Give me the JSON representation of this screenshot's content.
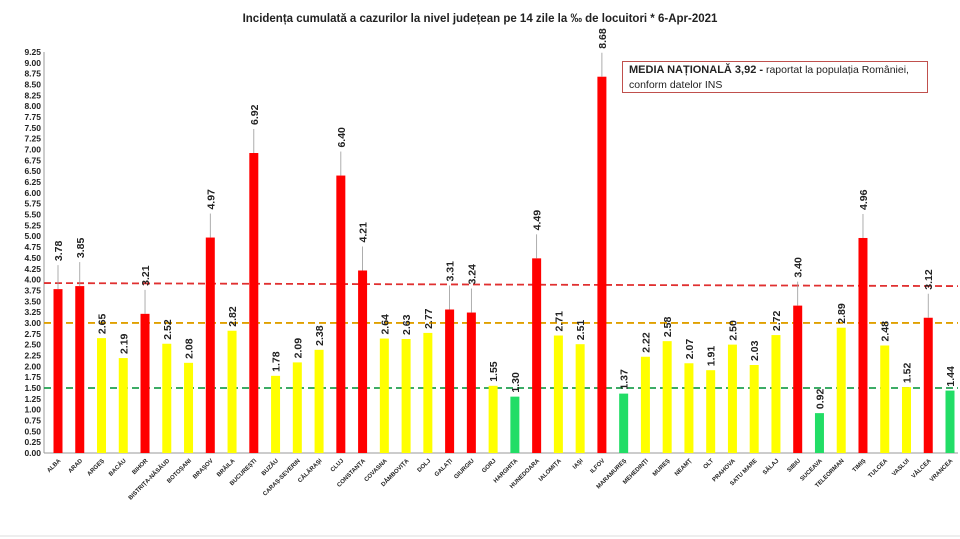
{
  "chart_data": {
    "type": "bar",
    "title": "Incidența cumulată a cazurilor la nivel județean pe 14 zile la ‰ de locuitori *   6-Apr-2021",
    "xlabel": "",
    "ylabel": "",
    "ylim": [
      0,
      9.25
    ],
    "ytick_step": 0.25,
    "grid": false,
    "categories": [
      "ALBA",
      "ARAD",
      "ARGEȘ",
      "BACĂU",
      "BIHOR",
      "BISTRIȚA-NĂSĂUD",
      "BOTOȘANI",
      "BRAȘOV",
      "BRĂILA",
      "BUCUREȘTI",
      "BUZĂU",
      "CARAȘ-SEVERIN",
      "CĂLĂRAȘI",
      "CLUJ",
      "CONSTANȚA",
      "COVASNA",
      "DÂMBOVIȚA",
      "DOLJ",
      "GALAȚI",
      "GIURGIU",
      "GORJ",
      "HARGHITA",
      "HUNEDOARA",
      "IALOMIȚA",
      "IAȘI",
      "ILFOV",
      "MARAMUREȘ",
      "MEHEDINȚI",
      "MUREȘ",
      "NEAMȚ",
      "OLT",
      "PRAHOVA",
      "SATU MARE",
      "SĂLAJ",
      "SIBIU",
      "SUCEAVA",
      "TELEORMAN",
      "TIMIȘ",
      "TULCEA",
      "VASLUI",
      "VÂLCEA",
      "VRANCEA"
    ],
    "values": [
      3.78,
      3.85,
      2.65,
      2.19,
      3.21,
      2.52,
      2.08,
      4.97,
      2.82,
      6.92,
      1.78,
      2.09,
      2.38,
      6.4,
      4.21,
      2.64,
      2.63,
      2.77,
      3.31,
      3.24,
      1.55,
      1.3,
      4.49,
      2.71,
      2.51,
      8.68,
      1.37,
      2.22,
      2.58,
      2.07,
      1.91,
      2.5,
      2.03,
      2.72,
      3.4,
      0.92,
      2.89,
      4.96,
      2.48,
      1.52,
      3.12,
      1.44
    ],
    "colors": {
      "red": "#ff0000",
      "yellow": "#ffff00",
      "green": "#22dd66"
    },
    "color_rule": "green < 1.5 ≤ yellow ≤ 3 < red",
    "reference_lines": [
      {
        "value": 3.92,
        "color": "#e03030",
        "style": "dashed"
      },
      {
        "value": 3.0,
        "color": "#e0a000",
        "style": "dashed"
      },
      {
        "value": 1.5,
        "color": "#20a050",
        "style": "dashed"
      }
    ],
    "annotation": {
      "bold": "MEDIA NAȚIONALĂ  3,92 -",
      "text": " raportat la populația României, conform datelor INS"
    }
  }
}
